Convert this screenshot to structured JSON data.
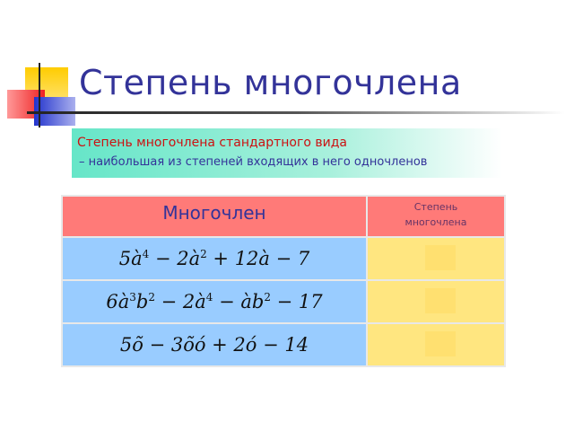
{
  "title": "Степень многочлена",
  "definition": {
    "term": "Степень многочлена стандартного вида",
    "text": "– наибольшая из степеней входящих в него одночленов"
  },
  "table": {
    "headers": [
      "Многочлен",
      "Степень многочлена"
    ],
    "rows": [
      {
        "parts": [
          {
            "t": "5à",
            "s": "4"
          },
          {
            "t": " − 2à",
            "s": "2"
          },
          {
            "t": " + 12à − 7",
            "s": ""
          }
        ],
        "answer": ""
      },
      {
        "parts": [
          {
            "t": "6à",
            "s": "3"
          },
          {
            "t": "b",
            "s": "2"
          },
          {
            "t": " − 2à",
            "s": "4"
          },
          {
            "t": " − àb",
            "s": "2"
          },
          {
            "t": " − 17",
            "s": ""
          }
        ],
        "answer": ""
      },
      {
        "parts": [
          {
            "t": "5õ − 3õó + 2ó − 14",
            "s": ""
          }
        ],
        "answer": ""
      }
    ]
  },
  "colors": {
    "title": "#333399",
    "header": "#ff7a78",
    "formula_cell": "#99ccff",
    "answer_cell": "#ffe680"
  }
}
